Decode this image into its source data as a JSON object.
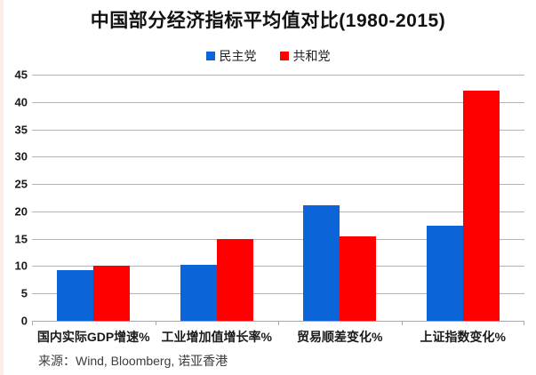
{
  "title": "中国部分经济指标平均值对比(1980-2015)",
  "source": "来源：Wind, Bloomberg, 诺亚香港",
  "colors": {
    "democrat_blue": "#0b64d8",
    "republican_red": "#fe0000",
    "gridline_gray": "#b4b4b4",
    "left_edge_strip": "#fbeee6"
  },
  "chart_data": {
    "type": "bar",
    "title": "中国部分经济指标平均值对比(1980-2015)",
    "categories": [
      "国内实际GDP增速%",
      "工业增加值增长率%",
      "贸易顺差变化%",
      "上证指数变化%"
    ],
    "series": [
      {
        "name": "民主党",
        "color": "#0b64d8",
        "values": [
          9.2,
          10.3,
          21.2,
          17.4
        ]
      },
      {
        "name": "共和党",
        "color": "#fe0000",
        "values": [
          10,
          15,
          15.5,
          42
        ]
      }
    ],
    "xlabel": "",
    "ylabel": "",
    "ylim": [
      0,
      45
    ],
    "ytick_step": 5,
    "yticks": [
      0,
      5,
      10,
      15,
      20,
      25,
      30,
      35,
      40,
      45
    ],
    "grid": true,
    "legend_position": "top-center",
    "source": "来源：Wind, Bloomberg, 诺亚香港"
  }
}
